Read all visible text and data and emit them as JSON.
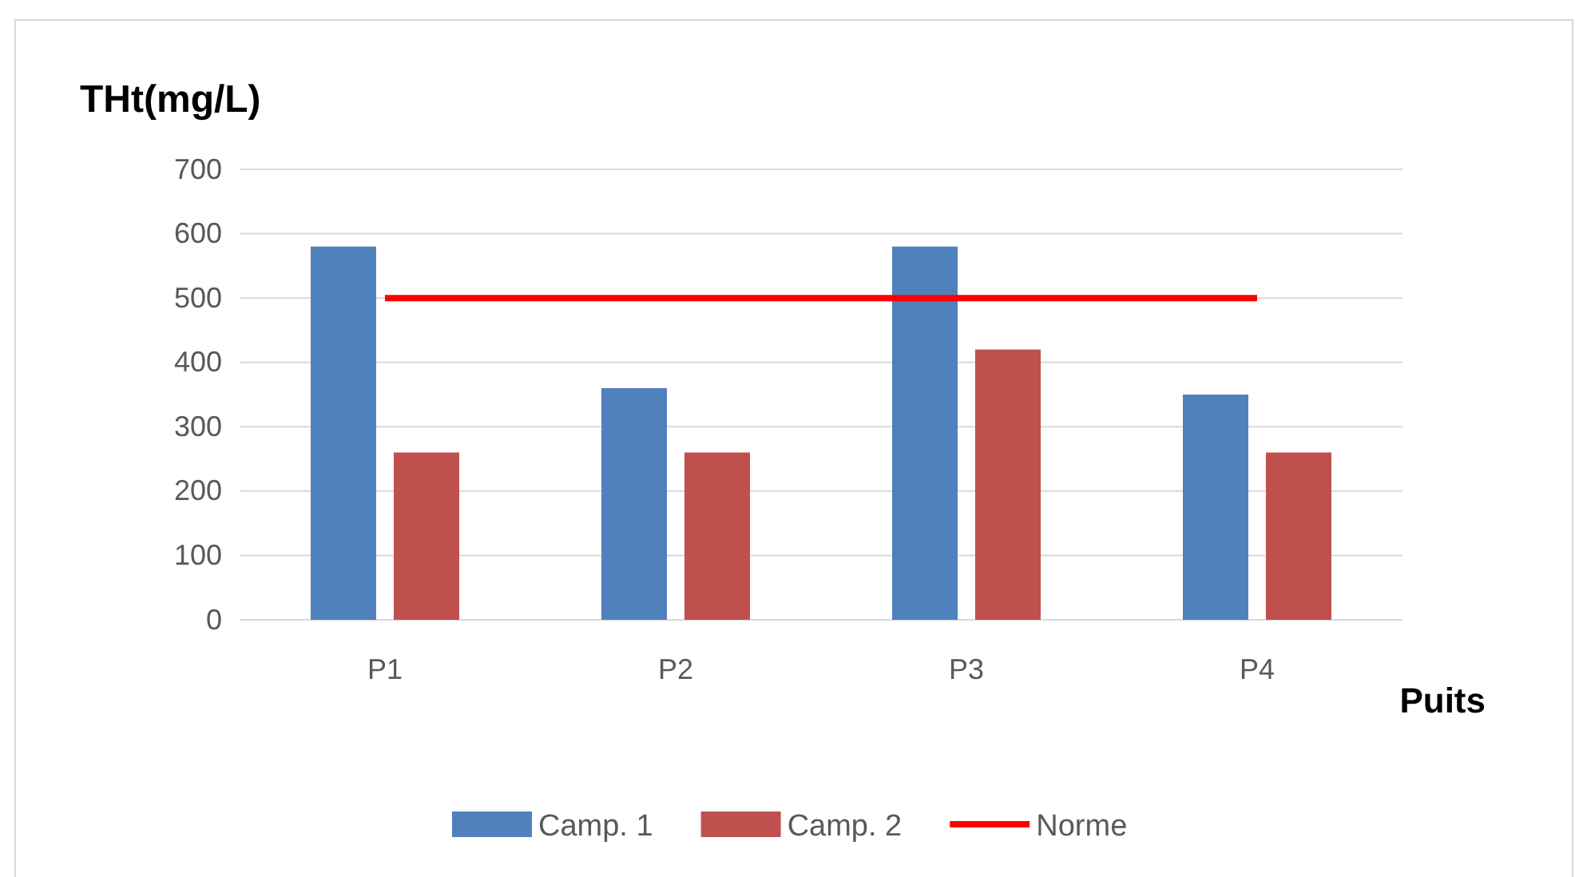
{
  "chart_data": {
    "type": "bar",
    "ylabel": "THt(mg/L)",
    "xlabel": "Puits",
    "categories": [
      "P1",
      "P2",
      "P3",
      "P4"
    ],
    "series": [
      {
        "name": "Camp. 1",
        "color": "#4f81bd",
        "values": [
          580,
          360,
          580,
          350
        ]
      },
      {
        "name": "Camp. 2",
        "color": "#c0504d",
        "values": [
          260,
          260,
          420,
          260
        ]
      },
      {
        "name": "Norme",
        "type": "line",
        "color": "#ff0000",
        "values": [
          500,
          500,
          500,
          500
        ]
      }
    ],
    "ylim": [
      0,
      700
    ],
    "yticks": [
      0,
      100,
      200,
      300,
      400,
      500,
      600,
      700
    ],
    "grid": "y",
    "legend": "bottom",
    "marker": "none",
    "line_style": "solid"
  }
}
